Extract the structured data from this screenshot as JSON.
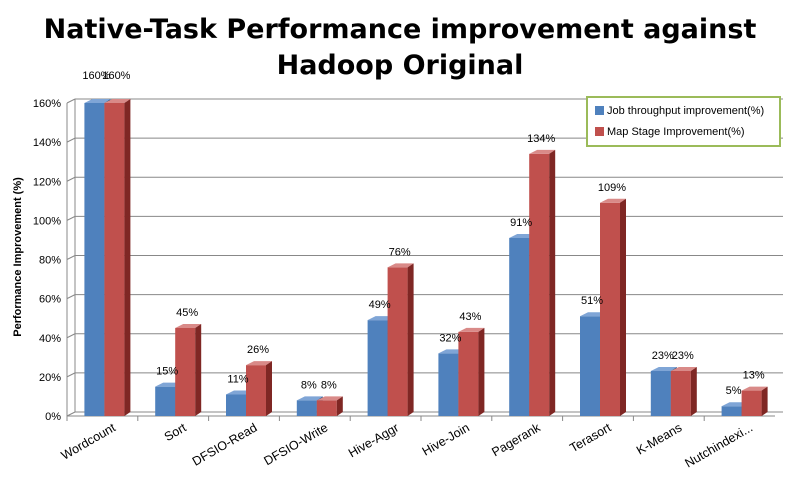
{
  "chart_data": {
    "type": "bar",
    "title_lines": [
      "Native-Task Performance improvement against",
      "Hadoop Original"
    ],
    "xlabel": "",
    "ylabel": "Performance Improvement (%)",
    "ylim": [
      0,
      160
    ],
    "yticks": [
      0,
      20,
      40,
      60,
      80,
      100,
      120,
      140,
      160
    ],
    "ytick_suffix": "%",
    "grid": true,
    "legend_position": "top-right",
    "categories": [
      "Wordcount",
      "Sort",
      "DFSIO-Read",
      "DFSIO-Write",
      "Hive-Aggr",
      "Hive-Join",
      "Pagerank",
      "Terasort",
      "K-Means",
      "Nutchindexi..."
    ],
    "series": [
      {
        "name": "Job throughput improvement(%)",
        "color": "#4f81bd",
        "top_color": "#7fa5d6",
        "side_color": "#2e5585",
        "values": [
          160,
          15,
          11,
          8,
          49,
          32,
          91,
          51,
          23,
          5
        ]
      },
      {
        "name": "Map Stage Improvement(%)",
        "color": "#c0504d",
        "top_color": "#d98a88",
        "side_color": "#7f2724",
        "values": [
          160,
          45,
          26,
          8,
          76,
          43,
          134,
          109,
          23,
          13
        ]
      }
    ],
    "data_labels": [
      [
        "160%",
        "15%",
        "11%",
        "8%",
        "49%",
        "32%",
        "91%",
        "51%",
        "23%",
        "5%"
      ],
      [
        "160%",
        "45%",
        "26%",
        "8%",
        "76%",
        "43%",
        "134%",
        "109%",
        "23%",
        "13%"
      ]
    ],
    "colors": {
      "legend_border": "#9bbb59",
      "grid": "#888888",
      "axis": "#888888"
    }
  }
}
